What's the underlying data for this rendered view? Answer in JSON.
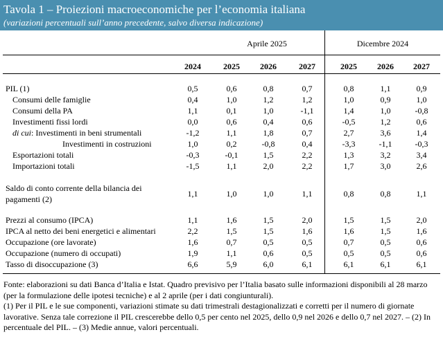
{
  "header": {
    "title": "Tavola 1 – Proiezioni macroeconomiche per l’economia italiana",
    "subtitle": "(variazioni percentuali sull’anno precedente, salvo diversa indicazione)"
  },
  "groups": {
    "april": "Aprile 2025",
    "december": "Dicembre 2024"
  },
  "columns": [
    "2024",
    "2025",
    "2026",
    "2027",
    "2025",
    "2026",
    "2027"
  ],
  "rows": [
    {
      "label": "PIL (1)",
      "values": [
        "0,5",
        "0,6",
        "0,8",
        "0,7",
        "0,8",
        "1,1",
        "0,9"
      ]
    },
    {
      "label": "Consumi delle famiglie",
      "values": [
        "0,4",
        "1,0",
        "1,2",
        "1,2",
        "1,0",
        "0,9",
        "1,0"
      ]
    },
    {
      "label": "Consumi della PA",
      "values": [
        "1,1",
        "0,1",
        "1,0",
        "-1,1",
        "1,4",
        "1,0",
        "-0,8"
      ]
    },
    {
      "label": "Investimenti fissi lordi",
      "values": [
        "0,0",
        "0,6",
        "0,4",
        "0,6",
        "-0,5",
        "1,2",
        "0,6"
      ]
    },
    {
      "prefix": "di cui",
      "label": ":   Investimenti in beni strumentali",
      "values": [
        "-1,2",
        "1,1",
        "1,8",
        "0,7",
        "2,7",
        "3,6",
        "1,4"
      ]
    },
    {
      "label": "Investimenti in costruzioni",
      "values": [
        "1,0",
        "0,2",
        "-0,8",
        "0,4",
        "-3,3",
        "-1,1",
        "-0,3"
      ]
    },
    {
      "label": "Esportazioni totali",
      "values": [
        "-0,3",
        "-0,1",
        "1,5",
        "2,2",
        "1,3",
        "3,2",
        "3,4"
      ]
    },
    {
      "label": "Importazioni totali",
      "values": [
        "-1,5",
        "1,1",
        "2,0",
        "2,2",
        "1,7",
        "3,0",
        "2,6"
      ]
    },
    {
      "label": "Saldo di conto corrente della bilancia dei pagamenti (2)",
      "values": [
        "1,1",
        "1,0",
        "1,0",
        "1,1",
        "0,8",
        "0,8",
        "1,1"
      ]
    },
    {
      "label": "Prezzi al consumo (IPCA)",
      "values": [
        "1,1",
        "1,6",
        "1,5",
        "2,0",
        "1,5",
        "1,5",
        "2,0"
      ]
    },
    {
      "label": "IPCA al netto dei beni energetici e alimentari",
      "values": [
        "2,2",
        "1,5",
        "1,5",
        "1,6",
        "1,6",
        "1,5",
        "1,6"
      ]
    },
    {
      "label": "Occupazione (ore lavorate)",
      "values": [
        "1,6",
        "0,7",
        "0,5",
        "0,5",
        "0,7",
        "0,5",
        "0,6"
      ]
    },
    {
      "label": "Occupazione (numero di occupati)",
      "values": [
        "1,9",
        "1,1",
        "0,6",
        "0,5",
        "0,5",
        "0,5",
        "0,6"
      ]
    },
    {
      "label": "Tasso di disoccupazione (3)",
      "values": [
        "6,6",
        "5,9",
        "6,0",
        "6,1",
        "6,1",
        "6,1",
        "6,1"
      ]
    }
  ],
  "footnote": {
    "source": "Fonte: elaborazioni su dati Banca d’Italia e Istat. Quadro previsivo per l’Italia basato sulle informazioni disponibili al 28 marzo (per la formulazione delle ipotesi tecniche) e al 2 aprile (per i dati congiunturali).",
    "notes": "(1) Per il PIL e le sue componenti, variazioni stimate su dati trimestrali destagionalizzati e corretti per il numero di giornate lavorative. Senza tale correzione il PIL crescerebbe dello 0,5 per cento nel 2025, dello 0,9 nel 2026 e dello 0,7 nel 2027. – (2) In percentuale del PIL. – (3) Medie annue, valori percentuali."
  }
}
